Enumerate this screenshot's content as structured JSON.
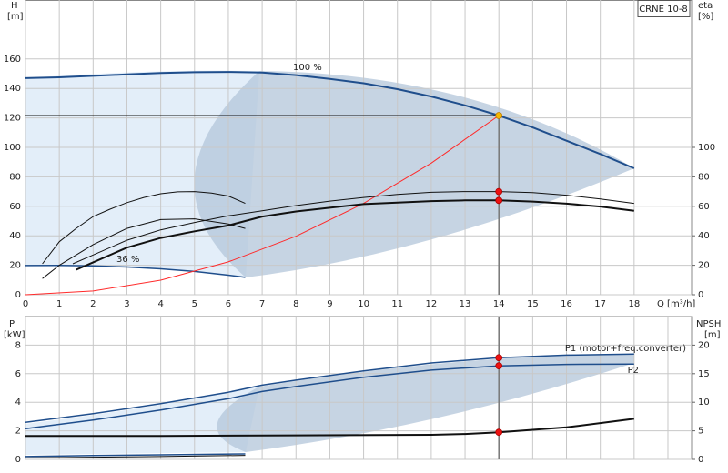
{
  "chart_data": [
    {
      "type": "line",
      "pump_model": "CRNE 10-8",
      "x_label": "Q [m³/h]",
      "y_label": "H",
      "y_unit": "[m]",
      "y2_label": "eta",
      "y2_unit": "[%]",
      "xlim": [
        0,
        19.7
      ],
      "ylim": [
        0,
        200
      ],
      "y2lim": [
        0,
        200
      ],
      "xticks": [
        0,
        1,
        2,
        3,
        4,
        5,
        6,
        7,
        8,
        9,
        10,
        11,
        12,
        13,
        14,
        15,
        16,
        17,
        18
      ],
      "yticks": [
        0,
        20,
        40,
        60,
        80,
        100,
        120,
        140,
        160
      ],
      "y2ticks": [
        0,
        20,
        40,
        60,
        80,
        100
      ],
      "grid": true,
      "show_xtick_labels": true,
      "duty_point": {
        "x": 14,
        "y": 121.6
      },
      "series": [
        {
          "name": "100 %",
          "color": "#1f4e8c",
          "width": 2,
          "x": [
            0,
            1,
            2,
            3,
            4,
            5,
            6,
            7,
            8,
            9,
            10,
            11,
            12,
            13,
            14,
            15,
            16,
            17,
            18
          ],
          "values": [
            147,
            147.5,
            148.5,
            149.5,
            150.5,
            151,
            151.2,
            150.8,
            149,
            146.5,
            143.5,
            139.5,
            134.5,
            128.5,
            121.6,
            113.5,
            104.5,
            95.5,
            85.8
          ]
        },
        {
          "name": "36 %",
          "color": "#1f4e8c",
          "width": 1.5,
          "x": [
            0,
            1,
            2,
            3,
            4,
            5,
            6,
            6.5
          ],
          "values": [
            19.8,
            19.9,
            19.6,
            18.8,
            17.6,
            15.8,
            13.3,
            11.8
          ]
        },
        {
          "color": "#ff2a2a",
          "width": 1,
          "x": [
            0,
            2,
            4,
            6,
            8,
            10,
            12,
            14
          ],
          "values": [
            0,
            2.5,
            9.9,
            22.3,
            39.7,
            62,
            89.3,
            121.6
          ]
        },
        {
          "color": "#111111",
          "width": 1,
          "axis": "y2",
          "x": [
            1.4,
            2,
            3,
            4,
            5,
            6,
            7,
            8,
            9,
            10,
            11,
            12,
            13,
            14,
            15,
            16,
            17,
            18
          ],
          "values": [
            21,
            27,
            37,
            44,
            49,
            53.5,
            57,
            60.5,
            63.5,
            66,
            68,
            69.5,
            70,
            70,
            69.3,
            67.5,
            65,
            62
          ]
        },
        {
          "color": "#111111",
          "width": 2,
          "axis": "y2",
          "x": [
            1.5,
            2,
            3,
            4,
            5,
            6,
            7,
            8,
            9,
            10,
            11,
            12,
            13,
            14,
            15,
            16,
            17,
            18
          ],
          "values": [
            17,
            22,
            32,
            38.5,
            43,
            47,
            53,
            56.5,
            59,
            61.5,
            62.5,
            63.5,
            64,
            64,
            63.2,
            61.8,
            59.8,
            57
          ]
        },
        {
          "color": "#111111",
          "width": 1,
          "axis": "y2",
          "x": [
            0.5,
            1,
            1.5,
            2,
            2.5,
            3,
            3.5,
            4,
            4.5,
            5,
            5.5,
            6,
            6.5
          ],
          "values": [
            21,
            36,
            45,
            53,
            58,
            62.5,
            66,
            68.5,
            69.8,
            70,
            69,
            67,
            62
          ]
        },
        {
          "color": "#111111",
          "width": 1,
          "axis": "y2",
          "x": [
            0.5,
            1,
            2,
            3,
            4,
            5,
            6,
            6.5
          ],
          "values": [
            11,
            20,
            34,
            45,
            51,
            51.5,
            48,
            45
          ]
        },
        {
          "style": "marker",
          "color": "#f5b800",
          "x": [
            14
          ],
          "values": [
            121.6
          ]
        },
        {
          "style": "marker",
          "color": "#ee1111",
          "axis": "y2",
          "x": [
            14,
            14
          ],
          "values": [
            70,
            64
          ]
        }
      ]
    },
    {
      "type": "line",
      "y_label": "P",
      "y_unit": "[kW]",
      "y2_label": "NPSH",
      "y2_unit": "[m]",
      "xlim": [
        0,
        19.7
      ],
      "ylim": [
        0,
        10
      ],
      "y2lim": [
        0,
        25
      ],
      "xticks": [
        0,
        1,
        2,
        3,
        4,
        5,
        6,
        7,
        8,
        9,
        10,
        11,
        12,
        13,
        14,
        15,
        16,
        17,
        18,
        19
      ],
      "yticks": [
        0,
        2,
        4,
        6,
        8
      ],
      "y2ticks": [
        0,
        5,
        10,
        15,
        20
      ],
      "grid": true,
      "show_xtick_labels": false,
      "duty_point": {
        "x": 14
      },
      "series": [
        {
          "name": "P1 (motor+freq.converter)",
          "color": "#1f4e8c",
          "width": 1.5,
          "x": [
            0,
            2,
            4,
            6,
            7,
            8,
            10,
            12,
            14,
            16,
            18
          ],
          "values": [
            2.6,
            3.2,
            3.9,
            4.7,
            5.2,
            5.55,
            6.2,
            6.75,
            7.12,
            7.3,
            7.37
          ]
        },
        {
          "name": "P2",
          "color": "#1f4e8c",
          "width": 1.5,
          "x": [
            0,
            2,
            4,
            6,
            7,
            8,
            10,
            12,
            14,
            16,
            18
          ],
          "values": [
            2.15,
            2.75,
            3.45,
            4.25,
            4.75,
            5.1,
            5.75,
            6.25,
            6.55,
            6.65,
            6.67
          ]
        },
        {
          "color": "#111111",
          "width": 2,
          "axis": "y2",
          "x": [
            0,
            4,
            8,
            12,
            13,
            14,
            16,
            18
          ],
          "values": [
            4.1,
            4.1,
            4.2,
            4.3,
            4.45,
            4.75,
            5.6,
            7.1
          ]
        },
        {
          "color": "#1f4e8c",
          "width": 1.5,
          "x": [
            0,
            2,
            4,
            6.5
          ],
          "values": [
            0.2,
            0.27,
            0.32,
            0.38
          ]
        },
        {
          "color": "#111111",
          "width": 1,
          "x": [
            0,
            2,
            4,
            6.5
          ],
          "values": [
            0.1,
            0.15,
            0.2,
            0.28
          ]
        },
        {
          "style": "marker",
          "color": "#ee1111",
          "x": [
            14,
            14
          ],
          "values": [
            7.12,
            6.55
          ]
        },
        {
          "style": "marker",
          "color": "#ee1111",
          "axis": "y2",
          "x": [
            14
          ],
          "values": [
            4.75
          ]
        }
      ]
    }
  ]
}
